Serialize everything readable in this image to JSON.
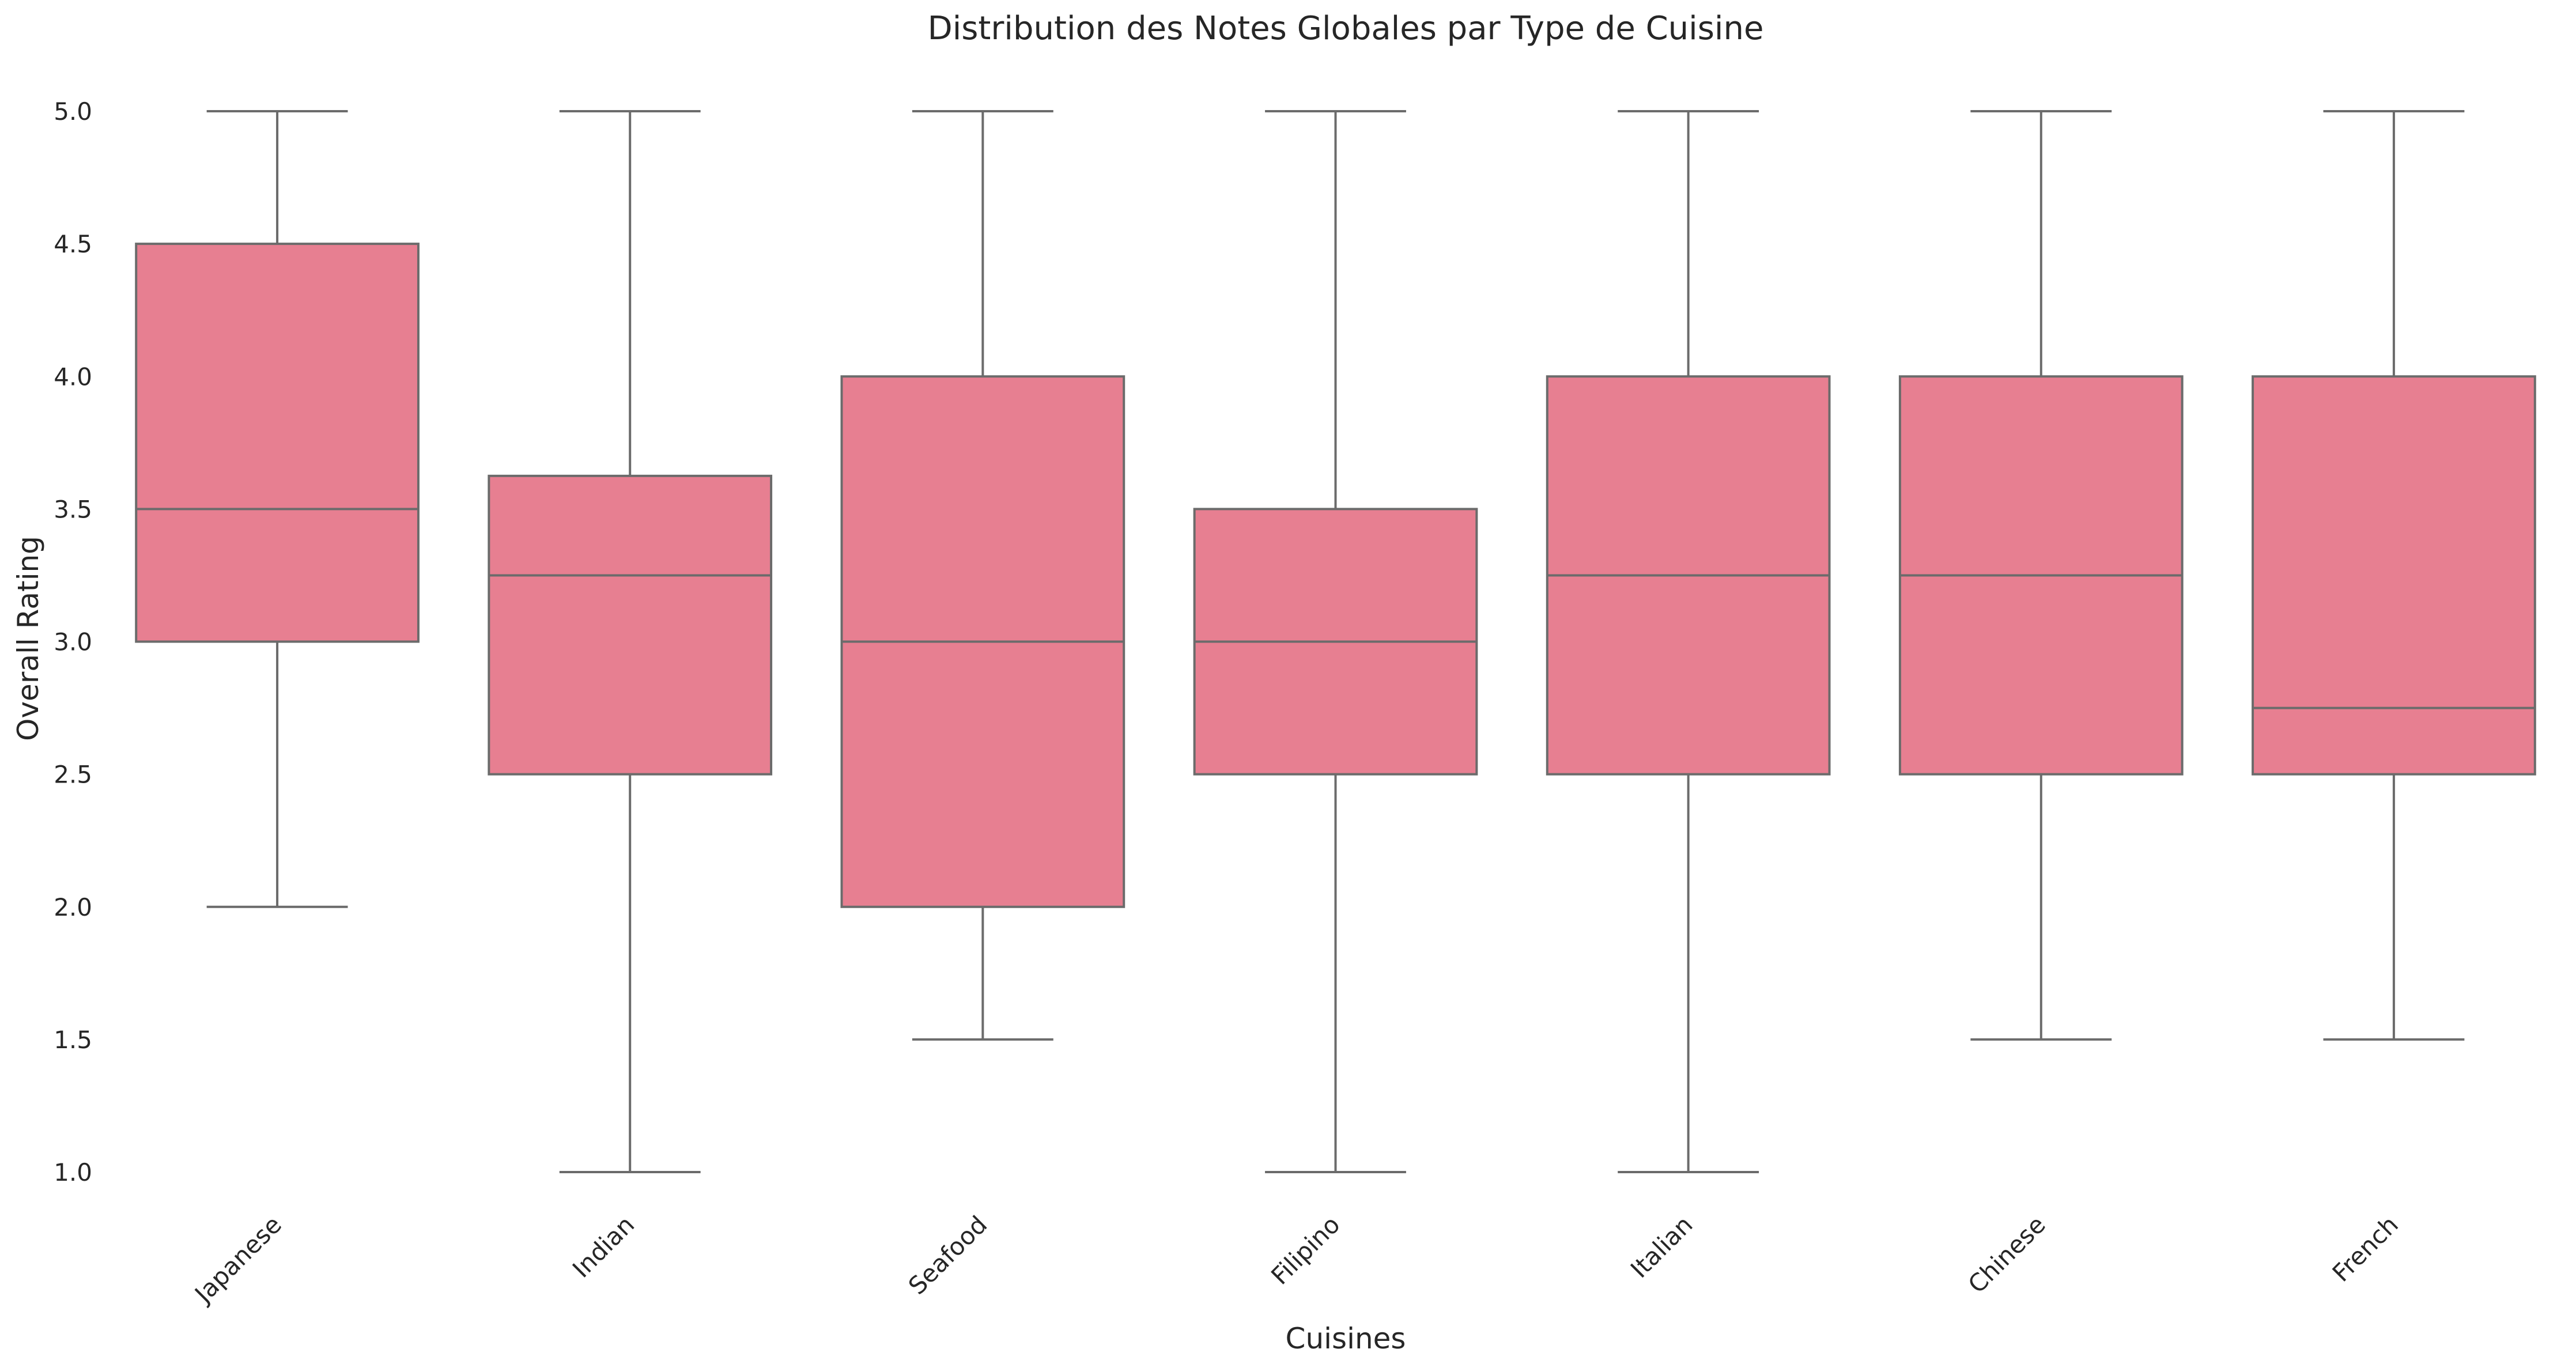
{
  "chart_data": {
    "type": "box",
    "title": "Distribution des Notes Globales par Type de Cuisine",
    "xlabel": "Cuisines",
    "ylabel": "Overall Rating",
    "ylim": [
      0.9,
      5.1
    ],
    "yticks": [
      1.0,
      1.5,
      2.0,
      2.5,
      3.0,
      3.5,
      4.0,
      4.5,
      5.0
    ],
    "grid": false,
    "box_color": "#e77f91",
    "line_color": "#6b6b6b",
    "categories": [
      "Japanese",
      "Indian",
      "Seafood",
      "Filipino",
      "Italian",
      "Chinese",
      "French"
    ],
    "boxes": [
      {
        "category": "Japanese",
        "whisker_low": 2.0,
        "q1": 3.0,
        "median": 3.5,
        "q3": 4.5,
        "whisker_high": 5.0
      },
      {
        "category": "Indian",
        "whisker_low": 1.0,
        "q1": 2.5,
        "median": 3.25,
        "q3": 3.625,
        "whisker_high": 5.0
      },
      {
        "category": "Seafood",
        "whisker_low": 1.5,
        "q1": 2.0,
        "median": 3.0,
        "q3": 4.0,
        "whisker_high": 5.0
      },
      {
        "category": "Filipino",
        "whisker_low": 1.0,
        "q1": 2.5,
        "median": 3.0,
        "q3": 3.5,
        "whisker_high": 5.0
      },
      {
        "category": "Italian",
        "whisker_low": 1.0,
        "q1": 2.5,
        "median": 3.25,
        "q3": 4.0,
        "whisker_high": 5.0
      },
      {
        "category": "Chinese",
        "whisker_low": 1.5,
        "q1": 2.5,
        "median": 3.25,
        "q3": 4.0,
        "whisker_high": 5.0
      },
      {
        "category": "French",
        "whisker_low": 1.5,
        "q1": 2.5,
        "median": 2.75,
        "q3": 4.0,
        "whisker_high": 5.0
      }
    ]
  }
}
